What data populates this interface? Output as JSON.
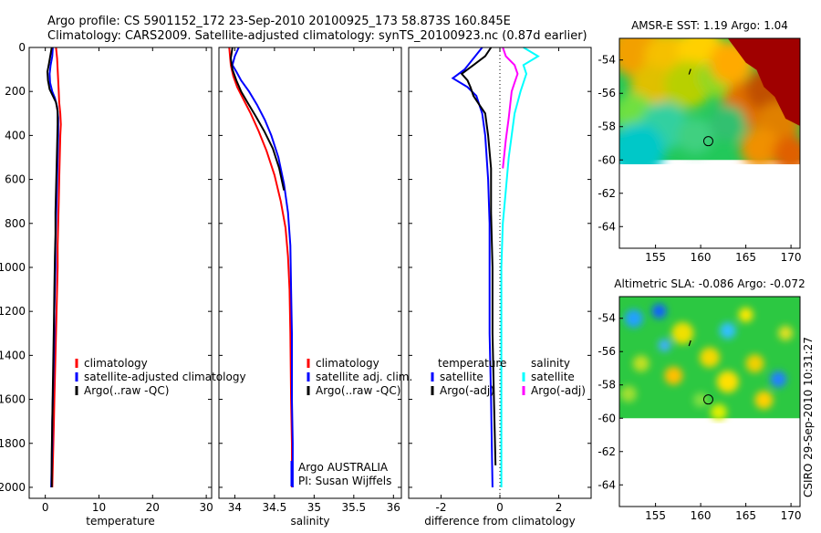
{
  "header": {
    "line1": "Argo profile: CS 5901152_172 23-Sep-2010 20100925_173 58.873S 160.845E",
    "line2": "Climatology: CARS2009. Satellite-adjusted climatology: synTS_20100923.nc (0.87d earlier)"
  },
  "side_label": "CSIRO 29-Sep-2010 10:31:27",
  "info": {
    "line1": "Argo AUSTRALIA",
    "line2": "PI: Susan Wijffels"
  },
  "colors": {
    "climatology": "#ff0000",
    "satellite": "#0000ff",
    "argo": "#000000",
    "sal_satellite": "#00ffff",
    "sal_argo": "#ff00ff",
    "land": "#a00000"
  },
  "chart_data": [
    {
      "type": "line",
      "name": "temperature-profile",
      "xlabel": "temperature",
      "ylabel": "",
      "xlim": [
        -3,
        31
      ],
      "ylim": [
        2050,
        0
      ],
      "xticks": [
        0,
        10,
        20,
        30
      ],
      "yticks": [
        0,
        200,
        400,
        600,
        800,
        1000,
        1200,
        1400,
        1600,
        1800,
        2000
      ],
      "legend": [
        "climatology",
        "satellite-adjusted climatology",
        "Argo(..raw -QC)"
      ],
      "series": [
        {
          "name": "climatology",
          "color": "#ff0000",
          "points": [
            [
              2.0,
              0
            ],
            [
              2.2,
              50
            ],
            [
              2.3,
              100
            ],
            [
              2.4,
              150
            ],
            [
              2.5,
              200
            ],
            [
              2.6,
              250
            ],
            [
              2.8,
              300
            ],
            [
              2.9,
              350
            ],
            [
              2.8,
              400
            ],
            [
              2.7,
              500
            ],
            [
              2.6,
              600
            ],
            [
              2.5,
              700
            ],
            [
              2.4,
              800
            ],
            [
              2.3,
              900
            ],
            [
              2.3,
              1000
            ],
            [
              2.2,
              1100
            ],
            [
              2.1,
              1200
            ],
            [
              2.0,
              1300
            ],
            [
              1.9,
              1400
            ],
            [
              1.8,
              1500
            ],
            [
              1.7,
              1600
            ],
            [
              1.6,
              1700
            ],
            [
              1.5,
              1800
            ],
            [
              1.4,
              1900
            ],
            [
              1.3,
              2000
            ]
          ]
        },
        {
          "name": "satellite-adjusted climatology",
          "color": "#0000ff",
          "points": [
            [
              1.4,
              0
            ],
            [
              1.3,
              40
            ],
            [
              1.0,
              80
            ],
            [
              0.8,
              120
            ],
            [
              0.9,
              160
            ],
            [
              1.3,
              200
            ],
            [
              1.8,
              230
            ],
            [
              2.2,
              270
            ],
            [
              2.4,
              320
            ],
            [
              2.4,
              400
            ],
            [
              2.3,
              500
            ],
            [
              2.2,
              600
            ],
            [
              2.1,
              700
            ],
            [
              2.0,
              800
            ],
            [
              1.9,
              900
            ],
            [
              1.9,
              1000
            ],
            [
              1.8,
              1100
            ],
            [
              1.7,
              1200
            ],
            [
              1.7,
              1300
            ],
            [
              1.6,
              1400
            ],
            [
              1.5,
              1500
            ],
            [
              1.4,
              1600
            ],
            [
              1.3,
              1700
            ],
            [
              1.3,
              1800
            ],
            [
              1.2,
              1900
            ],
            [
              1.1,
              2000
            ]
          ]
        },
        {
          "name": "Argo(..raw -QC)",
          "color": "#000000",
          "points": [
            [
              1.2,
              0
            ],
            [
              1.0,
              30
            ],
            [
              0.7,
              70
            ],
            [
              0.4,
              110
            ],
            [
              0.5,
              150
            ],
            [
              0.8,
              190
            ],
            [
              1.4,
              220
            ],
            [
              2.0,
              250
            ],
            [
              2.3,
              290
            ],
            [
              2.3,
              350
            ],
            [
              2.2,
              450
            ],
            [
              2.1,
              550
            ],
            [
              2.0,
              650
            ],
            [
              1.9,
              750
            ],
            [
              1.9,
              850
            ],
            [
              1.8,
              950
            ],
            [
              1.7,
              1100
            ],
            [
              1.6,
              1250
            ],
            [
              1.5,
              1400
            ],
            [
              1.4,
              1550
            ],
            [
              1.3,
              1700
            ],
            [
              1.2,
              1850
            ],
            [
              1.2,
              2000
            ]
          ]
        }
      ]
    },
    {
      "type": "line",
      "name": "salinity-profile",
      "xlabel": "salinity",
      "xlim": [
        33.8,
        36.1
      ],
      "ylim": [
        2050,
        0
      ],
      "xticks": [
        34,
        34.5,
        35,
        35.5,
        36
      ],
      "legend": [
        "climatology",
        "satellite adj. clim.",
        "Argo(..raw -QC)"
      ],
      "series": [
        {
          "name": "climatology",
          "color": "#ff0000",
          "points": [
            [
              33.93,
              0
            ],
            [
              33.95,
              80
            ],
            [
              33.98,
              130
            ],
            [
              34.03,
              180
            ],
            [
              34.1,
              230
            ],
            [
              34.2,
              300
            ],
            [
              34.3,
              380
            ],
            [
              34.4,
              470
            ],
            [
              34.5,
              580
            ],
            [
              34.58,
              700
            ],
            [
              34.64,
              820
            ],
            [
              34.67,
              950
            ],
            [
              34.69,
              1100
            ],
            [
              34.7,
              1300
            ],
            [
              34.71,
              1600
            ],
            [
              34.72,
              1800
            ],
            [
              34.72,
              2000
            ]
          ]
        },
        {
          "name": "satellite adj. clim.",
          "color": "#0000ff",
          "points": [
            [
              34.05,
              0
            ],
            [
              34.0,
              40
            ],
            [
              33.97,
              80
            ],
            [
              34.02,
              110
            ],
            [
              34.08,
              150
            ],
            [
              34.18,
              200
            ],
            [
              34.28,
              260
            ],
            [
              34.38,
              330
            ],
            [
              34.46,
              400
            ],
            [
              34.55,
              500
            ],
            [
              34.62,
              620
            ],
            [
              34.67,
              750
            ],
            [
              34.7,
              900
            ],
            [
              34.71,
              1100
            ],
            [
              34.72,
              1300
            ],
            [
              34.72,
              1600
            ],
            [
              34.73,
              1800
            ],
            [
              34.73,
              2000
            ]
          ]
        },
        {
          "name": "Argo(..raw -QC)",
          "color": "#000000",
          "points": [
            [
              33.97,
              0
            ],
            [
              33.95,
              50
            ],
            [
              33.97,
              100
            ],
            [
              34.02,
              150
            ],
            [
              34.08,
              200
            ],
            [
              34.16,
              250
            ],
            [
              34.26,
              310
            ],
            [
              34.37,
              380
            ],
            [
              34.48,
              460
            ],
            [
              34.56,
              550
            ],
            [
              34.62,
              650
            ]
          ]
        }
      ]
    },
    {
      "type": "line",
      "name": "difference-profile",
      "xlabel": "difference from climatology",
      "xlim": [
        -3.1,
        3.1
      ],
      "ylim": [
        2050,
        0
      ],
      "xticks": [
        -2,
        0,
        2
      ],
      "legend": [
        "temperature",
        "satellite",
        "Argo(-adj)",
        "salinity",
        "satellite",
        "Argo(-adj)"
      ],
      "series": [
        {
          "name": "temperature satellite",
          "color": "#0000ff",
          "points": [
            [
              -0.6,
              0
            ],
            [
              -0.9,
              50
            ],
            [
              -1.2,
              100
            ],
            [
              -1.6,
              140
            ],
            [
              -1.1,
              180
            ],
            [
              -0.8,
              220
            ],
            [
              -0.6,
              300
            ],
            [
              -0.5,
              400
            ],
            [
              -0.4,
              600
            ],
            [
              -0.35,
              800
            ],
            [
              -0.35,
              1000
            ],
            [
              -0.35,
              1300
            ],
            [
              -0.3,
              1600
            ],
            [
              -0.25,
              2000
            ]
          ]
        },
        {
          "name": "temperature Argo(-adj)",
          "color": "#000000",
          "points": [
            [
              -0.3,
              0
            ],
            [
              -0.5,
              40
            ],
            [
              -0.9,
              80
            ],
            [
              -1.3,
              120
            ],
            [
              -1.1,
              150
            ],
            [
              -1.0,
              180
            ],
            [
              -0.9,
              220
            ],
            [
              -0.7,
              260
            ],
            [
              -0.5,
              300
            ],
            [
              -0.4,
              400
            ],
            [
              -0.3,
              550
            ],
            [
              -0.3,
              750
            ],
            [
              -0.25,
              1000
            ],
            [
              -0.25,
              1300
            ],
            [
              -0.2,
              1600
            ],
            [
              -0.15,
              1900
            ]
          ]
        },
        {
          "name": "salinity satellite",
          "color": "#00ffff",
          "points": [
            [
              0.8,
              0
            ],
            [
              1.3,
              40
            ],
            [
              0.8,
              80
            ],
            [
              0.9,
              120
            ],
            [
              0.8,
              160
            ],
            [
              0.7,
              200
            ],
            [
              0.6,
              250
            ],
            [
              0.5,
              300
            ],
            [
              0.4,
              400
            ],
            [
              0.3,
              500
            ],
            [
              0.2,
              650
            ],
            [
              0.1,
              800
            ],
            [
              0.05,
              1000
            ],
            [
              0.05,
              1300
            ],
            [
              0.05,
              1700
            ],
            [
              0.05,
              2000
            ]
          ]
        },
        {
          "name": "salinity Argo(-adj)",
          "color": "#ff00ff",
          "points": [
            [
              0.1,
              0
            ],
            [
              0.2,
              40
            ],
            [
              0.5,
              80
            ],
            [
              0.6,
              120
            ],
            [
              0.5,
              160
            ],
            [
              0.4,
              200
            ],
            [
              0.35,
              260
            ],
            [
              0.3,
              320
            ],
            [
              0.2,
              420
            ],
            [
              0.1,
              550
            ]
          ]
        }
      ]
    },
    {
      "type": "heatmap",
      "name": "sst-map",
      "title": "AMSR-E SST: 1.19 Argo: 1.04",
      "xlim": [
        151,
        171
      ],
      "ylim": [
        -65.3,
        -52.7
      ],
      "xticks": [
        155,
        160,
        165,
        170
      ],
      "yticks": [
        -54,
        -56,
        -58,
        -60,
        -62,
        -64
      ],
      "data_extent_lat": [
        -60,
        -52.7
      ],
      "float_position": [
        160.845,
        -58.873
      ],
      "marker": [
        158.8,
        -54.7
      ]
    },
    {
      "type": "heatmap",
      "name": "sla-map",
      "title": "Altimetric SLA: -0.086 Argo: -0.072",
      "xlim": [
        151,
        171
      ],
      "ylim": [
        -65.3,
        -52.7
      ],
      "xticks": [
        155,
        160,
        165,
        170
      ],
      "yticks": [
        -54,
        -56,
        -58,
        -60,
        -62,
        -64
      ],
      "data_extent_lat": [
        -60,
        -52.7
      ],
      "float_position": [
        160.845,
        -58.873
      ],
      "marker": [
        158.8,
        -55.5
      ]
    }
  ]
}
